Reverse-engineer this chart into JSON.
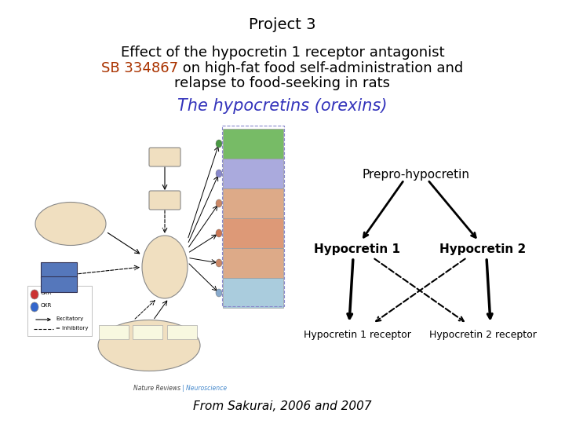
{
  "title": "Project 3",
  "title_fontsize": 14,
  "title_color": "#000000",
  "line1": "Effect of the hypocretin 1 receptor antagonist",
  "line2_part1": "SB 334867",
  "line2_part2": " on high-fat food self-administration and",
  "line3": "relapse to food-seeking in rats",
  "subtitle_fontsize": 13,
  "subtitle_color": "#000000",
  "highlight_color": "#aa3300",
  "orexin_title": "The hypocretins (orexins)",
  "orexin_fontsize": 15,
  "orexin_color": "#3333bb",
  "prepro_label": "Prepro-hypocretin",
  "hypo1_label": "Hypocretin 1",
  "hypo2_label": "Hypocretin 2",
  "receptor1_label": "Hypocretin 1 receptor",
  "receptor2_label": "Hypocretin 2 receptor",
  "diagram_fontsize": 11,
  "diagram_color": "#000000",
  "citation": "From Sakurai, 2006 and 2007",
  "citation_fontsize": 11,
  "citation_color": "#000000",
  "bg_color": "#ffffff"
}
